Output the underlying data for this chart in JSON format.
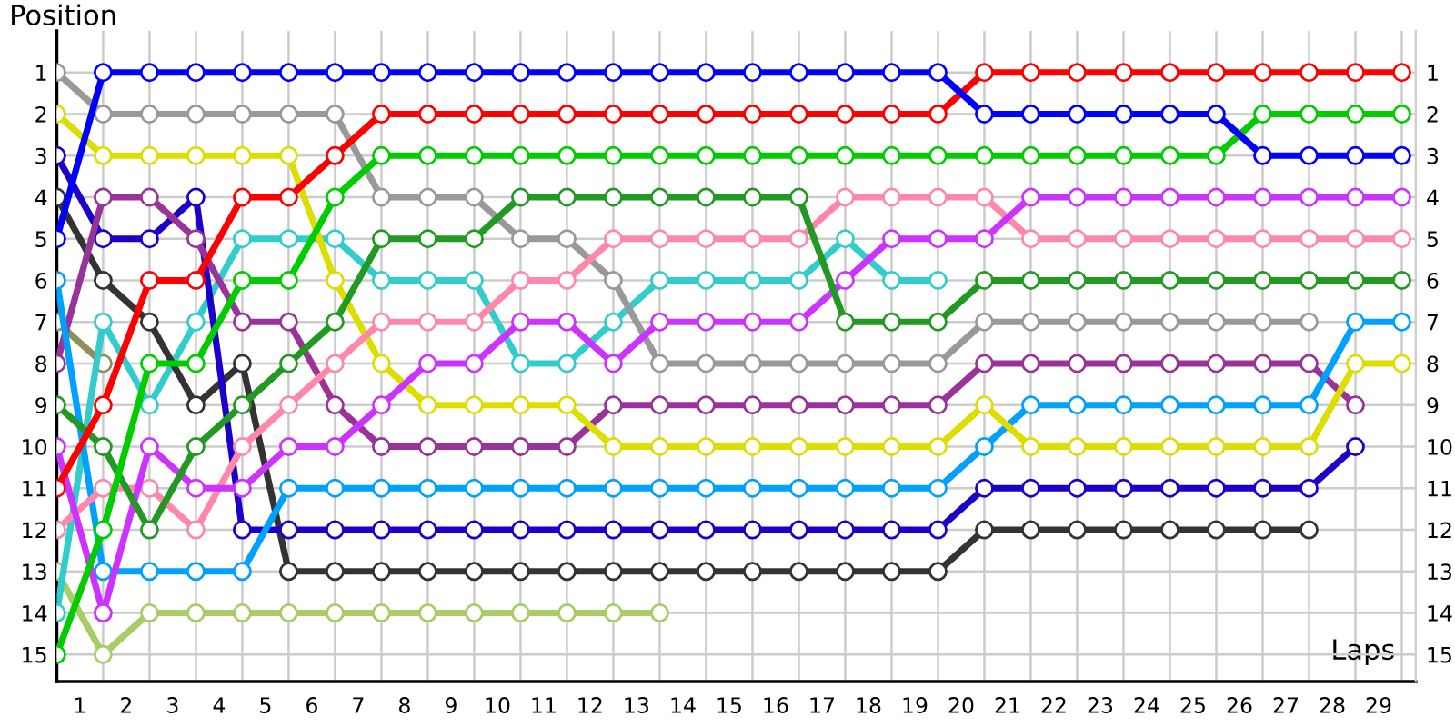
{
  "chart_data": {
    "type": "line",
    "xlabel": "Laps",
    "ylabel": "Position",
    "x": [
      0,
      1,
      2,
      3,
      4,
      5,
      6,
      7,
      8,
      9,
      10,
      11,
      12,
      13,
      14,
      15,
      16,
      17,
      18,
      19,
      20,
      21,
      22,
      23,
      24,
      25,
      26,
      27,
      28,
      29
    ],
    "xlim": [
      0,
      29.3
    ],
    "ylim": [
      15.65,
      0
    ],
    "xticks": [
      {
        "value": 0,
        "label": null
      },
      {
        "value": 0.5,
        "label": "1"
      },
      {
        "value": 1,
        "label": null
      },
      {
        "value": 1.5,
        "label": "2"
      },
      {
        "value": 2,
        "label": null
      },
      {
        "value": 2.5,
        "label": "3"
      },
      {
        "value": 3,
        "label": null
      },
      {
        "value": 3.5,
        "label": "4"
      },
      {
        "value": 4,
        "label": null
      },
      {
        "value": 4.5,
        "label": "5"
      },
      {
        "value": 5,
        "label": null
      },
      {
        "value": 5.5,
        "label": "6"
      },
      {
        "value": 6,
        "label": null
      },
      {
        "value": 6.5,
        "label": "7"
      },
      {
        "value": 7,
        "label": null
      },
      {
        "value": 7.5,
        "label": "8"
      },
      {
        "value": 8,
        "label": null
      },
      {
        "value": 8.5,
        "label": "9"
      },
      {
        "value": 9,
        "label": null
      },
      {
        "value": 9.5,
        "label": "10"
      },
      {
        "value": 10,
        "label": null
      },
      {
        "value": 10.5,
        "label": "11"
      },
      {
        "value": 11,
        "label": null
      },
      {
        "value": 11.5,
        "label": "12"
      },
      {
        "value": 12,
        "label": null
      },
      {
        "value": 12.5,
        "label": "13"
      },
      {
        "value": 13,
        "label": null
      },
      {
        "value": 13.5,
        "label": "14"
      },
      {
        "value": 14,
        "label": null
      },
      {
        "value": 14.5,
        "label": "15"
      },
      {
        "value": 15,
        "label": null
      },
      {
        "value": 15.5,
        "label": "16"
      },
      {
        "value": 16,
        "label": null
      },
      {
        "value": 16.5,
        "label": "17"
      },
      {
        "value": 17,
        "label": null
      },
      {
        "value": 17.5,
        "label": "18"
      },
      {
        "value": 18,
        "label": null
      },
      {
        "value": 18.5,
        "label": "19"
      },
      {
        "value": 19,
        "label": null
      },
      {
        "value": 19.5,
        "label": "20"
      },
      {
        "value": 20,
        "label": null
      },
      {
        "value": 20.5,
        "label": "21"
      },
      {
        "value": 21,
        "label": null
      },
      {
        "value": 21.5,
        "label": "22"
      },
      {
        "value": 22,
        "label": null
      },
      {
        "value": 22.5,
        "label": "23"
      },
      {
        "value": 23,
        "label": null
      },
      {
        "value": 23.5,
        "label": "24"
      },
      {
        "value": 24,
        "label": null
      },
      {
        "value": 24.5,
        "label": "25"
      },
      {
        "value": 25,
        "label": null
      },
      {
        "value": 25.5,
        "label": "26"
      },
      {
        "value": 26,
        "label": null
      },
      {
        "value": 26.5,
        "label": "27"
      },
      {
        "value": 27,
        "label": null
      },
      {
        "value": 27.5,
        "label": "28"
      },
      {
        "value": 28,
        "label": null
      },
      {
        "value": 28.5,
        "label": "29"
      },
      {
        "value": 29,
        "label": null
      }
    ],
    "yticks": [
      1,
      2,
      3,
      4,
      5,
      6,
      7,
      8,
      9,
      10,
      11,
      12,
      13,
      14,
      15
    ],
    "y2lim": [
      15.65,
      0
    ],
    "y2ticks": [
      1,
      2,
      3,
      4,
      5,
      6,
      7,
      8,
      9,
      10,
      11,
      12,
      13,
      14,
      15
    ],
    "grid": true,
    "marker": "circle",
    "line_style": "solid",
    "legend": false,
    "series": [
      {
        "color": "#8f8f5a",
        "values": [
          7,
          8,
          null,
          null,
          null,
          null,
          null,
          null,
          null,
          null,
          null,
          null,
          null,
          null,
          null,
          null,
          null,
          null,
          null,
          null,
          null,
          null,
          null,
          null,
          null,
          null,
          null,
          null,
          null,
          null
        ]
      },
      {
        "color": "#a8cc66",
        "values": [
          13,
          15,
          14,
          14,
          14,
          14,
          14,
          14,
          14,
          14,
          14,
          14,
          14,
          14,
          null,
          null,
          null,
          null,
          null,
          null,
          null,
          null,
          null,
          null,
          null,
          null,
          null,
          null,
          null,
          null
        ]
      },
      {
        "color": "#33cccc",
        "values": [
          14,
          7,
          9,
          7,
          5,
          5,
          5,
          6,
          6,
          6,
          8,
          8,
          7,
          6,
          6,
          6,
          6,
          5,
          6,
          6,
          null,
          null,
          null,
          null,
          null,
          null,
          null,
          null,
          null,
          null
        ]
      },
      {
        "color": "#333333",
        "values": [
          4,
          6,
          7,
          9,
          8,
          13,
          13,
          13,
          13,
          13,
          13,
          13,
          13,
          13,
          13,
          13,
          13,
          13,
          13,
          13,
          12,
          12,
          12,
          12,
          12,
          12,
          12,
          12,
          null,
          null
        ]
      },
      {
        "color": "#999999",
        "values": [
          1,
          2,
          2,
          2,
          2,
          2,
          2,
          4,
          4,
          4,
          5,
          5,
          6,
          8,
          8,
          8,
          8,
          8,
          8,
          8,
          7,
          7,
          7,
          7,
          7,
          7,
          7,
          7,
          null,
          null
        ]
      },
      {
        "color": "#1a00c8",
        "values": [
          3,
          5,
          5,
          4,
          12,
          12,
          12,
          12,
          12,
          12,
          12,
          12,
          12,
          12,
          12,
          12,
          12,
          12,
          12,
          12,
          11,
          11,
          11,
          11,
          11,
          11,
          11,
          11,
          10,
          null
        ]
      },
      {
        "color": "#993399",
        "values": [
          8,
          4,
          4,
          5,
          7,
          7,
          9,
          10,
          10,
          10,
          10,
          10,
          9,
          9,
          9,
          9,
          9,
          9,
          9,
          9,
          8,
          8,
          8,
          8,
          8,
          8,
          8,
          8,
          9,
          null
        ]
      },
      {
        "color": "#00a0ff",
        "values": [
          6,
          13,
          13,
          13,
          13,
          11,
          11,
          11,
          11,
          11,
          11,
          11,
          11,
          11,
          11,
          11,
          11,
          11,
          11,
          11,
          10,
          9,
          9,
          9,
          9,
          9,
          9,
          9,
          7,
          7
        ]
      },
      {
        "color": "#dddd00",
        "values": [
          2,
          3,
          3,
          3,
          3,
          3,
          6,
          8,
          9,
          9,
          9,
          9,
          10,
          10,
          10,
          10,
          10,
          10,
          10,
          10,
          9,
          10,
          10,
          10,
          10,
          10,
          10,
          10,
          8,
          8
        ]
      },
      {
        "color": "#ff88aa",
        "values": [
          12,
          11,
          11,
          12,
          10,
          9,
          8,
          7,
          7,
          7,
          6,
          6,
          5,
          5,
          5,
          5,
          5,
          4,
          4,
          4,
          4,
          5,
          5,
          5,
          5,
          5,
          5,
          5,
          5,
          5
        ]
      },
      {
        "color": "#cc33ff",
        "values": [
          10,
          14,
          10,
          11,
          11,
          10,
          10,
          9,
          8,
          8,
          7,
          7,
          8,
          7,
          7,
          7,
          7,
          6,
          5,
          5,
          5,
          4,
          4,
          4,
          4,
          4,
          4,
          4,
          4,
          4
        ]
      },
      {
        "color": "#229922",
        "values": [
          9,
          10,
          12,
          10,
          9,
          8,
          7,
          5,
          5,
          5,
          4,
          4,
          4,
          4,
          4,
          4,
          4,
          7,
          7,
          7,
          6,
          6,
          6,
          6,
          6,
          6,
          6,
          6,
          6,
          6
        ]
      },
      {
        "color": "#00cc00",
        "values": [
          15,
          12,
          8,
          8,
          6,
          6,
          4,
          3,
          3,
          3,
          3,
          3,
          3,
          3,
          3,
          3,
          3,
          3,
          3,
          3,
          3,
          3,
          3,
          3,
          3,
          3,
          2,
          2,
          2,
          2
        ]
      },
      {
        "color": "#ff0000",
        "values": [
          11,
          9,
          6,
          6,
          4,
          4,
          3,
          2,
          2,
          2,
          2,
          2,
          2,
          2,
          2,
          2,
          2,
          2,
          2,
          2,
          1,
          1,
          1,
          1,
          1,
          1,
          1,
          1,
          1,
          1
        ]
      },
      {
        "color": "#0000ff",
        "values": [
          5,
          1,
          1,
          1,
          1,
          1,
          1,
          1,
          1,
          1,
          1,
          1,
          1,
          1,
          1,
          1,
          1,
          1,
          1,
          1,
          2,
          2,
          2,
          2,
          2,
          2,
          3,
          3,
          3,
          3
        ]
      }
    ]
  }
}
